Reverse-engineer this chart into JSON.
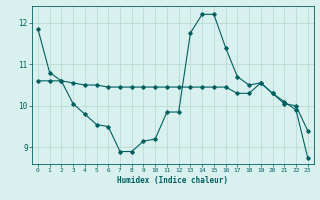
{
  "title": "",
  "xlabel": "Humidex (Indice chaleur)",
  "background_color": "#d8f0ee",
  "grid_color": "#c0ddd8",
  "line_color": "#006060",
  "xlim": [
    -0.5,
    23.5
  ],
  "ylim": [
    8.6,
    12.4
  ],
  "yticks": [
    9,
    10,
    11,
    12
  ],
  "xticks": [
    0,
    1,
    2,
    3,
    4,
    5,
    6,
    7,
    8,
    9,
    10,
    11,
    12,
    13,
    14,
    15,
    16,
    17,
    18,
    19,
    20,
    21,
    22,
    23
  ],
  "series1_x": [
    0,
    1,
    2,
    3,
    4,
    5,
    6,
    7,
    8,
    9,
    10,
    11,
    12,
    13,
    14,
    15,
    16,
    17,
    18,
    19,
    20,
    21,
    22,
    23
  ],
  "series1_y": [
    11.85,
    10.8,
    10.6,
    10.05,
    9.8,
    9.55,
    9.5,
    8.9,
    8.9,
    9.15,
    9.2,
    9.85,
    9.85,
    11.75,
    12.2,
    12.2,
    11.4,
    10.7,
    10.5,
    10.55,
    10.3,
    10.05,
    10.0,
    9.4
  ],
  "series2_x": [
    0,
    1,
    2,
    3,
    4,
    5,
    6,
    7,
    8,
    9,
    10,
    11,
    12,
    13,
    14,
    15,
    16,
    17,
    18,
    19,
    20,
    21,
    22,
    23
  ],
  "series2_y": [
    10.6,
    10.6,
    10.6,
    10.55,
    10.5,
    10.5,
    10.45,
    10.45,
    10.45,
    10.45,
    10.45,
    10.45,
    10.45,
    10.45,
    10.45,
    10.45,
    10.45,
    10.3,
    10.3,
    10.55,
    10.3,
    10.1,
    9.9,
    8.75
  ]
}
